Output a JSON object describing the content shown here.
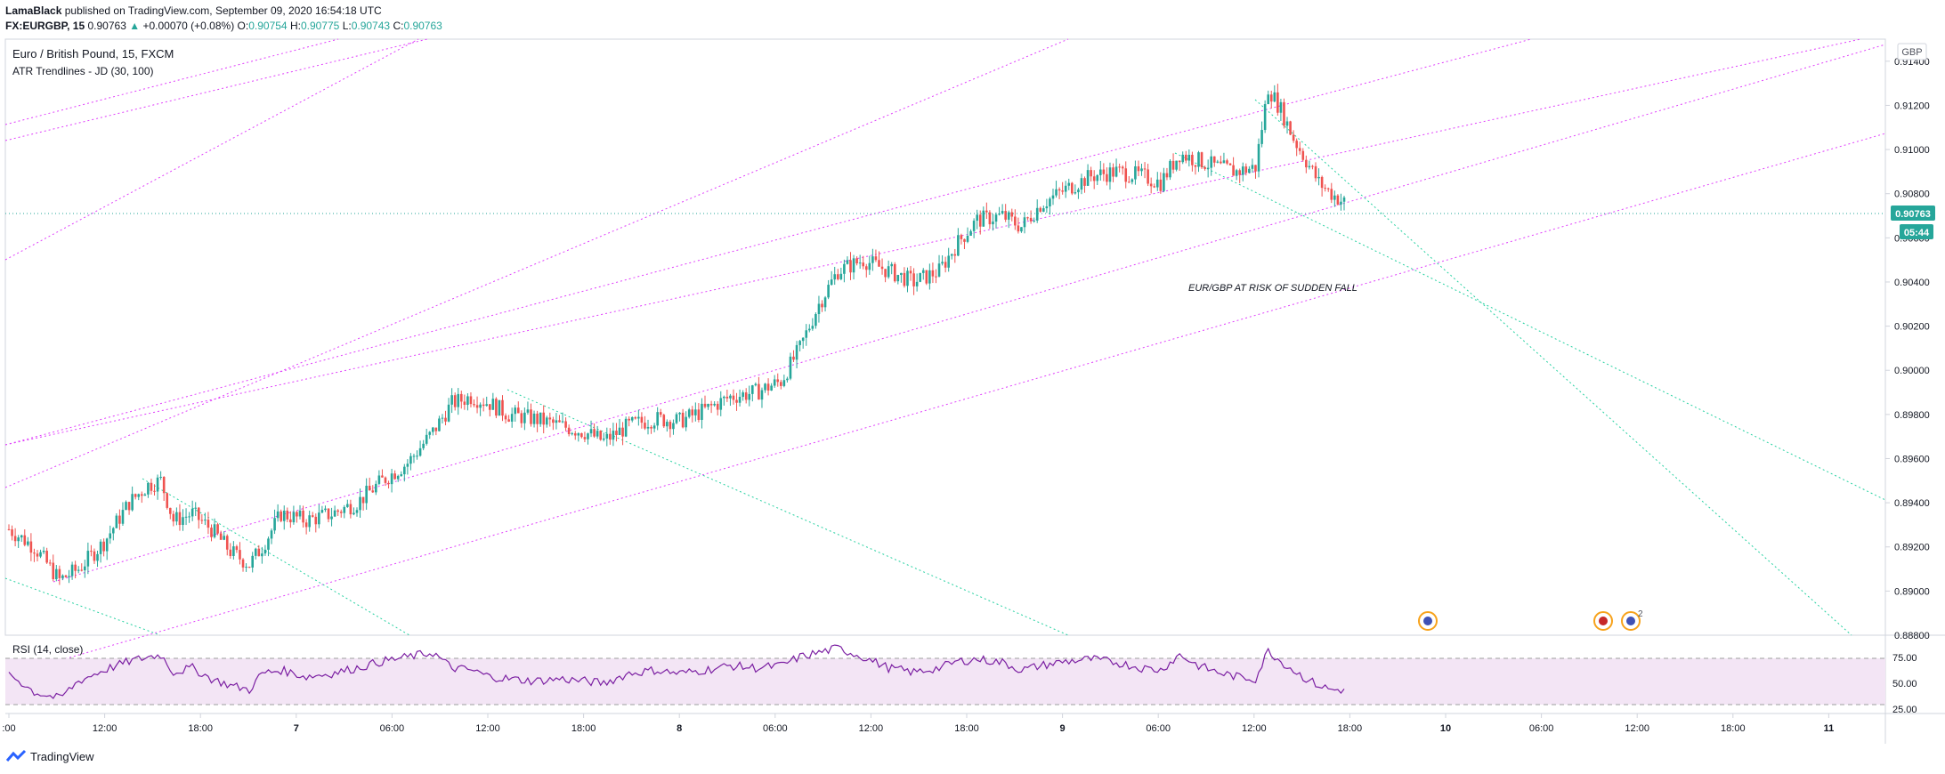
{
  "header": {
    "author": "LamaBlack",
    "published": "published on TradingView.com, September 09, 2020 16:54:18 UTC",
    "symbol": "FX:EURGBP, 15",
    "last": "0.90763",
    "change": "+0.00070 (+0.08%)",
    "open_label": "O:",
    "open": "0.90754",
    "high_label": "H:",
    "high": "0.90775",
    "low_label": "L:",
    "low": "0.90743",
    "close_label": "C:",
    "close": "0.90763"
  },
  "legend": {
    "title": "Euro / British Pound, 15, FXCM",
    "indicator": "ATR Trendlines - JD (30, 100)",
    "currency_badge": "GBP"
  },
  "annotation": "EUR/GBP AT RISK OF SUDDEN FALL",
  "price_tag": "0.90763",
  "countdown_tag": "05:44",
  "rsi": {
    "label": "RSI (14, close)",
    "ticks": [
      "75.00",
      "50.00",
      "25.00"
    ]
  },
  "footer": {
    "brand": "TradingView"
  },
  "colors": {
    "up": "#26a69a",
    "down": "#ef5350",
    "trend_magenta": "#e040fb",
    "trend_green": "#26d1a1",
    "rsi_line": "#7b1fa2",
    "rsi_band": "#f3e5f5"
  },
  "chart_data": {
    "type": "candlestick",
    "symbol": "EURGBP",
    "ylim": [
      0.888,
      0.915
    ],
    "y_ticks": [
      "0.91400",
      "0.91200",
      "0.91000",
      "0.90800",
      "0.90600",
      "0.90400",
      "0.90200",
      "0.90000",
      "0.89800",
      "0.89600",
      "0.89400",
      "0.89200",
      "0.89000",
      "0.88800"
    ],
    "x_ticks": [
      ":00",
      "12:00",
      "18:00",
      "7",
      "06:00",
      "12:00",
      "18:00",
      "8",
      "06:00",
      "12:00",
      "18:00",
      "9",
      "06:00",
      "12:00",
      "18:00",
      "10",
      "06:00",
      "12:00",
      "18:00",
      "11"
    ],
    "close_path": [
      [
        0,
        0.8928
      ],
      [
        8,
        0.892
      ],
      [
        16,
        0.8905
      ],
      [
        22,
        0.891
      ],
      [
        30,
        0.8922
      ],
      [
        38,
        0.894
      ],
      [
        44,
        0.8948
      ],
      [
        48,
        0.895
      ],
      [
        52,
        0.8932
      ],
      [
        58,
        0.8935
      ],
      [
        64,
        0.8928
      ],
      [
        70,
        0.8918
      ],
      [
        76,
        0.8912
      ],
      [
        80,
        0.892
      ],
      [
        86,
        0.8935
      ],
      [
        94,
        0.8932
      ],
      [
        102,
        0.8935
      ],
      [
        110,
        0.894
      ],
      [
        118,
        0.895
      ],
      [
        126,
        0.8958
      ],
      [
        134,
        0.8972
      ],
      [
        140,
        0.8985
      ],
      [
        146,
        0.8988
      ],
      [
        152,
        0.8985
      ],
      [
        158,
        0.898
      ],
      [
        166,
        0.8978
      ],
      [
        174,
        0.8975
      ],
      [
        182,
        0.8972
      ],
      [
        188,
        0.8968
      ],
      [
        196,
        0.8975
      ],
      [
        204,
        0.8978
      ],
      [
        212,
        0.8977
      ],
      [
        220,
        0.8982
      ],
      [
        228,
        0.8988
      ],
      [
        236,
        0.899
      ],
      [
        244,
        0.8995
      ],
      [
        250,
        0.901
      ],
      [
        256,
        0.903
      ],
      [
        262,
        0.9045
      ],
      [
        270,
        0.905
      ],
      [
        278,
        0.9045
      ],
      [
        286,
        0.904
      ],
      [
        294,
        0.9045
      ],
      [
        300,
        0.9058
      ],
      [
        306,
        0.9068
      ],
      [
        314,
        0.907
      ],
      [
        320,
        0.9065
      ],
      [
        326,
        0.9075
      ],
      [
        334,
        0.9082
      ],
      [
        342,
        0.9088
      ],
      [
        350,
        0.909
      ],
      [
        358,
        0.9088
      ],
      [
        364,
        0.9085
      ],
      [
        370,
        0.9098
      ],
      [
        376,
        0.9095
      ],
      [
        382,
        0.9092
      ],
      [
        388,
        0.909
      ],
      [
        394,
        0.9092
      ],
      [
        398,
        0.9128
      ],
      [
        402,
        0.9118
      ],
      [
        406,
        0.9105
      ],
      [
        410,
        0.9095
      ],
      [
        414,
        0.9085
      ],
      [
        418,
        0.908
      ],
      [
        422,
        0.9076
      ]
    ],
    "rsi_path": [
      [
        0,
        55
      ],
      [
        8,
        38
      ],
      [
        16,
        32
      ],
      [
        22,
        48
      ],
      [
        30,
        58
      ],
      [
        38,
        66
      ],
      [
        44,
        70
      ],
      [
        48,
        72
      ],
      [
        52,
        56
      ],
      [
        58,
        60
      ],
      [
        64,
        50
      ],
      [
        70,
        44
      ],
      [
        76,
        40
      ],
      [
        80,
        55
      ],
      [
        86,
        58
      ],
      [
        94,
        52
      ],
      [
        102,
        55
      ],
      [
        110,
        60
      ],
      [
        118,
        66
      ],
      [
        126,
        70
      ],
      [
        134,
        74
      ],
      [
        140,
        60
      ],
      [
        146,
        58
      ],
      [
        152,
        52
      ],
      [
        158,
        50
      ],
      [
        166,
        48
      ],
      [
        174,
        50
      ],
      [
        182,
        48
      ],
      [
        188,
        46
      ],
      [
        196,
        55
      ],
      [
        204,
        58
      ],
      [
        212,
        55
      ],
      [
        220,
        58
      ],
      [
        228,
        62
      ],
      [
        236,
        60
      ],
      [
        244,
        62
      ],
      [
        250,
        70
      ],
      [
        256,
        74
      ],
      [
        262,
        78
      ],
      [
        270,
        70
      ],
      [
        278,
        60
      ],
      [
        286,
        56
      ],
      [
        294,
        60
      ],
      [
        300,
        66
      ],
      [
        306,
        68
      ],
      [
        314,
        65
      ],
      [
        320,
        58
      ],
      [
        326,
        62
      ],
      [
        334,
        66
      ],
      [
        342,
        68
      ],
      [
        350,
        65
      ],
      [
        358,
        60
      ],
      [
        364,
        58
      ],
      [
        370,
        72
      ],
      [
        376,
        62
      ],
      [
        382,
        56
      ],
      [
        388,
        52
      ],
      [
        394,
        50
      ],
      [
        398,
        76
      ],
      [
        402,
        66
      ],
      [
        406,
        58
      ],
      [
        410,
        50
      ],
      [
        414,
        44
      ],
      [
        418,
        40
      ],
      [
        422,
        40
      ]
    ],
    "rsi_ylim": [
      20,
      85
    ],
    "rsi_levels": [
      70,
      30
    ],
    "last_price": 0.90763,
    "event_markers": [
      "flag",
      "flag",
      "flag-2"
    ]
  }
}
